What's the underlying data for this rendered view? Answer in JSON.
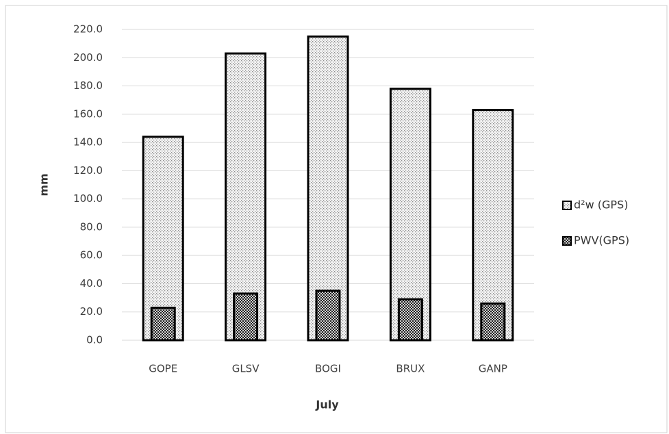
{
  "chart_data": {
    "type": "bar",
    "x_label": "July",
    "y_label": "mm",
    "categories": [
      "GOPE",
      "GLSV",
      "BOGI",
      "BRUX",
      "GANP"
    ],
    "series": [
      {
        "name": "d²w (GPS)",
        "color": "#d4d4d4",
        "values": [
          144,
          203,
          215,
          178,
          163
        ]
      },
      {
        "name": "PWV(GPS)",
        "color": "#222222",
        "values": [
          23,
          33,
          35,
          29,
          26
        ]
      }
    ],
    "ylim": [
      0,
      220
    ],
    "yticks": [
      {
        "value": 0,
        "label": "0.0"
      },
      {
        "value": 20,
        "label": "20.0"
      },
      {
        "value": 40,
        "label": "40.0"
      },
      {
        "value": 60,
        "label": "60.0"
      },
      {
        "value": 80,
        "label": "80.0"
      },
      {
        "value": 100,
        "label": "100.0"
      },
      {
        "value": 120,
        "label": "120.0"
      },
      {
        "value": 140,
        "label": "140.0"
      },
      {
        "value": 160,
        "label": "160.0"
      },
      {
        "value": 180,
        "label": "180.0"
      },
      {
        "value": 200,
        "label": "200.0"
      },
      {
        "value": 220,
        "label": "220.0"
      }
    ],
    "grid": true,
    "legend": "right"
  }
}
